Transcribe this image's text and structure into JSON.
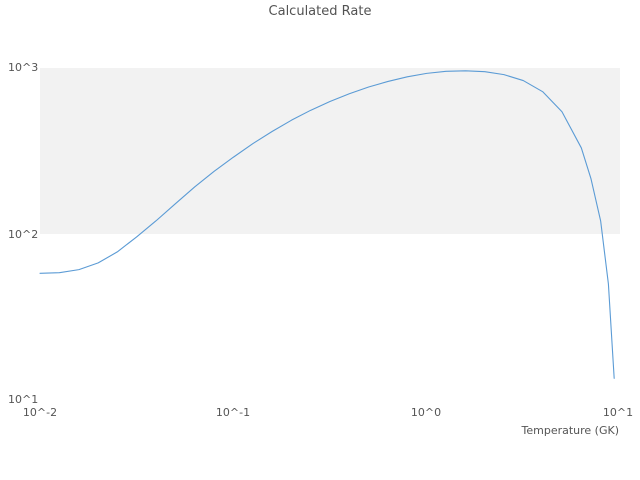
{
  "title": "Calculated Rate",
  "xlabel": "Temperature (GK)",
  "chart_data": {
    "type": "line",
    "title": "Calculated Rate",
    "xlabel": "Temperature (GK)",
    "ylabel": "",
    "x_scale": "log",
    "y_scale": "log",
    "xlim": [
      0.01,
      10
    ],
    "ylim": [
      10,
      1000
    ],
    "x_ticks": [
      "10^-2",
      "10^-1",
      "10^0",
      "10^1"
    ],
    "y_ticks": [
      "10^3",
      "10^2",
      "10^1"
    ],
    "legend": "none",
    "grid": "off",
    "band": {
      "from": 100,
      "to": 1000,
      "color": "#f2f2f2"
    },
    "line_color": "#5b9bd5",
    "x": [
      0.01,
      0.0126,
      0.0159,
      0.02,
      0.0251,
      0.0316,
      0.0398,
      0.0501,
      0.0631,
      0.0794,
      0.1,
      0.126,
      0.159,
      0.2,
      0.251,
      0.316,
      0.398,
      0.501,
      0.631,
      0.794,
      1.0,
      1.26,
      1.59,
      2.0,
      2.51,
      3.16,
      3.98,
      5.01,
      6.31,
      7.08,
      7.94,
      8.71,
      9.33
    ],
    "y": [
      58,
      58.5,
      61,
      67,
      78,
      96,
      120,
      152,
      192,
      238,
      290,
      350,
      415,
      485,
      556,
      628,
      700,
      768,
      830,
      885,
      928,
      955,
      962,
      950,
      912,
      840,
      720,
      545,
      330,
      215,
      120,
      50,
      13.5
    ]
  }
}
